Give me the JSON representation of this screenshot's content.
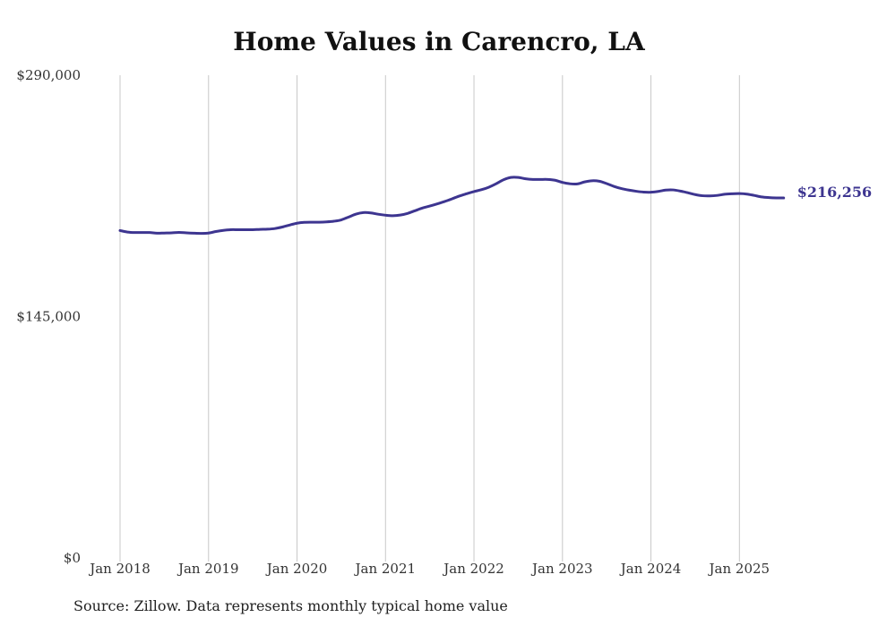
{
  "chart_data": {
    "type": "line",
    "title": "Home Values in Carencro, LA",
    "source": "Source: Zillow. Data represents monthly typical home value",
    "xlabel": "",
    "ylabel": "",
    "ylim": [
      0,
      290000
    ],
    "y_ticks": [
      {
        "value": 0,
        "label": "$0"
      },
      {
        "value": 145000,
        "label": "$145,000"
      },
      {
        "value": 290000,
        "label": "$290,000"
      }
    ],
    "x_ticks": [
      {
        "value": "2018-01",
        "label": "Jan 2018"
      },
      {
        "value": "2019-01",
        "label": "Jan 2019"
      },
      {
        "value": "2020-01",
        "label": "Jan 2020"
      },
      {
        "value": "2021-01",
        "label": "Jan 2021"
      },
      {
        "value": "2022-01",
        "label": "Jan 2022"
      },
      {
        "value": "2023-01",
        "label": "Jan 2023"
      },
      {
        "value": "2024-01",
        "label": "Jan 2024"
      },
      {
        "value": "2025-01",
        "label": "Jan 2025"
      }
    ],
    "grid": "vertical",
    "line_color": "#3d3590",
    "end_label": "$216,256",
    "series": [
      {
        "x": [
          "2018-01",
          "2018-02",
          "2018-03",
          "2018-04",
          "2018-05",
          "2018-06",
          "2018-07",
          "2018-08",
          "2018-09",
          "2018-10",
          "2018-11",
          "2018-12",
          "2019-01",
          "2019-02",
          "2019-03",
          "2019-04",
          "2019-05",
          "2019-06",
          "2019-07",
          "2019-08",
          "2019-09",
          "2019-10",
          "2019-11",
          "2019-12",
          "2020-01",
          "2020-02",
          "2020-03",
          "2020-04",
          "2020-05",
          "2020-06",
          "2020-07",
          "2020-08",
          "2020-09",
          "2020-10",
          "2020-11",
          "2020-12",
          "2021-01",
          "2021-02",
          "2021-03",
          "2021-04",
          "2021-05",
          "2021-06",
          "2021-07",
          "2021-08",
          "2021-09",
          "2021-10",
          "2021-11",
          "2021-12",
          "2022-01",
          "2022-02",
          "2022-03",
          "2022-04",
          "2022-05",
          "2022-06",
          "2022-07",
          "2022-08",
          "2022-09",
          "2022-10",
          "2022-11",
          "2022-12",
          "2023-01",
          "2023-02",
          "2023-03",
          "2023-04",
          "2023-05",
          "2023-06",
          "2023-07",
          "2023-08",
          "2023-09",
          "2023-10",
          "2023-11",
          "2023-12",
          "2024-01",
          "2024-02",
          "2024-03",
          "2024-04",
          "2024-05",
          "2024-06",
          "2024-07",
          "2024-08",
          "2024-09",
          "2024-10",
          "2024-11",
          "2024-12",
          "2025-01",
          "2025-02",
          "2025-03",
          "2025-04",
          "2025-05",
          "2025-06",
          "2025-07"
        ],
        "values": [
          196700,
          195800,
          195500,
          195500,
          195500,
          195100,
          195200,
          195300,
          195600,
          195300,
          195100,
          195000,
          195200,
          196100,
          196800,
          197200,
          197200,
          197200,
          197200,
          197400,
          197500,
          197900,
          198800,
          200000,
          201100,
          201600,
          201700,
          201700,
          201900,
          202300,
          203100,
          204800,
          206600,
          207500,
          207300,
          206500,
          205900,
          205600,
          206000,
          207000,
          208600,
          210200,
          211400,
          212700,
          214100,
          215700,
          217400,
          218800,
          220100,
          221200,
          222700,
          224800,
          227200,
          228600,
          228600,
          227800,
          227400,
          227400,
          227400,
          226900,
          225600,
          224800,
          224700,
          225900,
          226600,
          226300,
          224900,
          223200,
          221900,
          221000,
          220300,
          219800,
          219700,
          220200,
          221000,
          221100,
          220400,
          219400,
          218300,
          217600,
          217500,
          217800,
          218500,
          218800,
          218900,
          218600,
          217800,
          216900,
          216500,
          216300,
          216256
        ]
      }
    ]
  }
}
